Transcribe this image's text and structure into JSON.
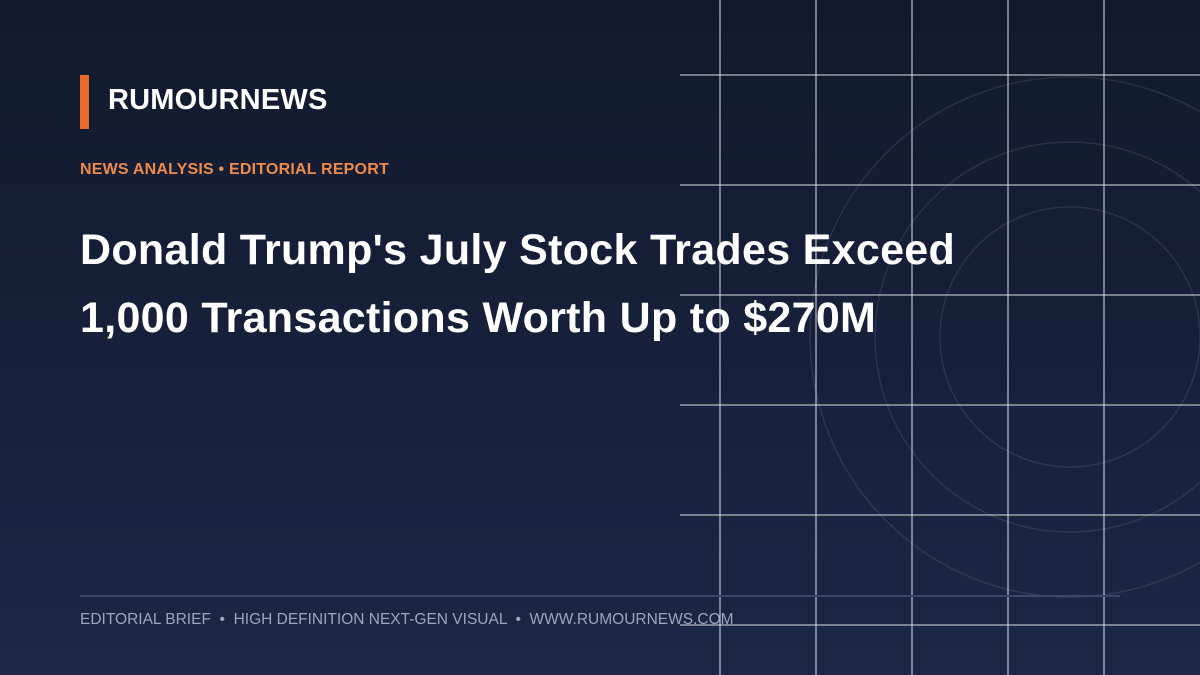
{
  "brand": "RUMOURNEWS",
  "kicker": "NEWS ANALYSIS • EDITORIAL REPORT",
  "headline": [
    "Donald Trump's July Stock Trades Exceed",
    "1,000 Transactions Worth Up to $270M"
  ],
  "footer": "EDITORIAL BRIEF  •  HIGH DEFINITION NEXT-GEN VISUAL  •  WWW.RUMOURNEWS.COM"
}
